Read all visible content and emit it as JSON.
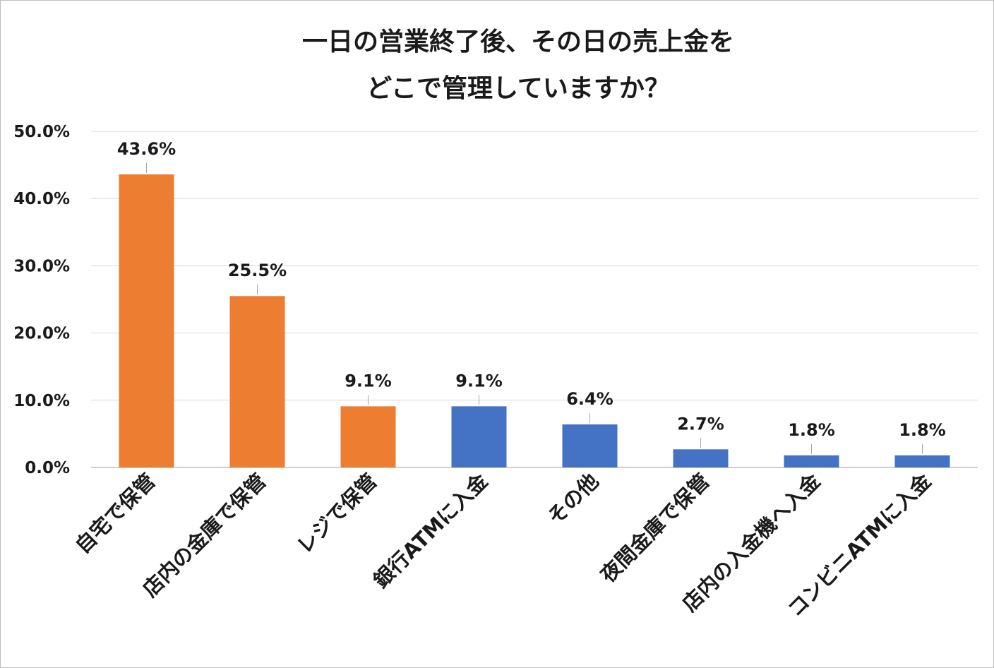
{
  "chart_data": {
    "type": "bar",
    "title_lines": [
      "一日の営業終了後、その日の売上金を",
      "どこで管理していますか？"
    ],
    "xlabel": "",
    "ylabel": "",
    "categories": [
      "自宅で保管",
      "店内の金庫で保管",
      "レジで保管",
      "銀行ATMに入金",
      "その他",
      "夜間金庫で保管",
      "店内の入金機へ入金",
      "コンビニATMに入金"
    ],
    "values": [
      43.6,
      25.5,
      9.1,
      9.1,
      6.4,
      2.7,
      1.8,
      1.8
    ],
    "data_labels": [
      "43.6%",
      "25.5%",
      "9.1%",
      "9.1%",
      "6.4%",
      "2.7%",
      "1.8%",
      "1.8%"
    ],
    "bar_colors": [
      "#ed7d31",
      "#ed7d31",
      "#ed7d31",
      "#4472c4",
      "#4472c4",
      "#4472c4",
      "#4472c4",
      "#4472c4"
    ],
    "ylim": [
      0,
      50
    ],
    "yticks": [
      0,
      10,
      20,
      30,
      40,
      50
    ],
    "ytick_labels": [
      "0.0%",
      "10.0%",
      "20.0%",
      "30.0%",
      "40.0%",
      "50.0%"
    ],
    "grid": true,
    "legend": "none"
  }
}
